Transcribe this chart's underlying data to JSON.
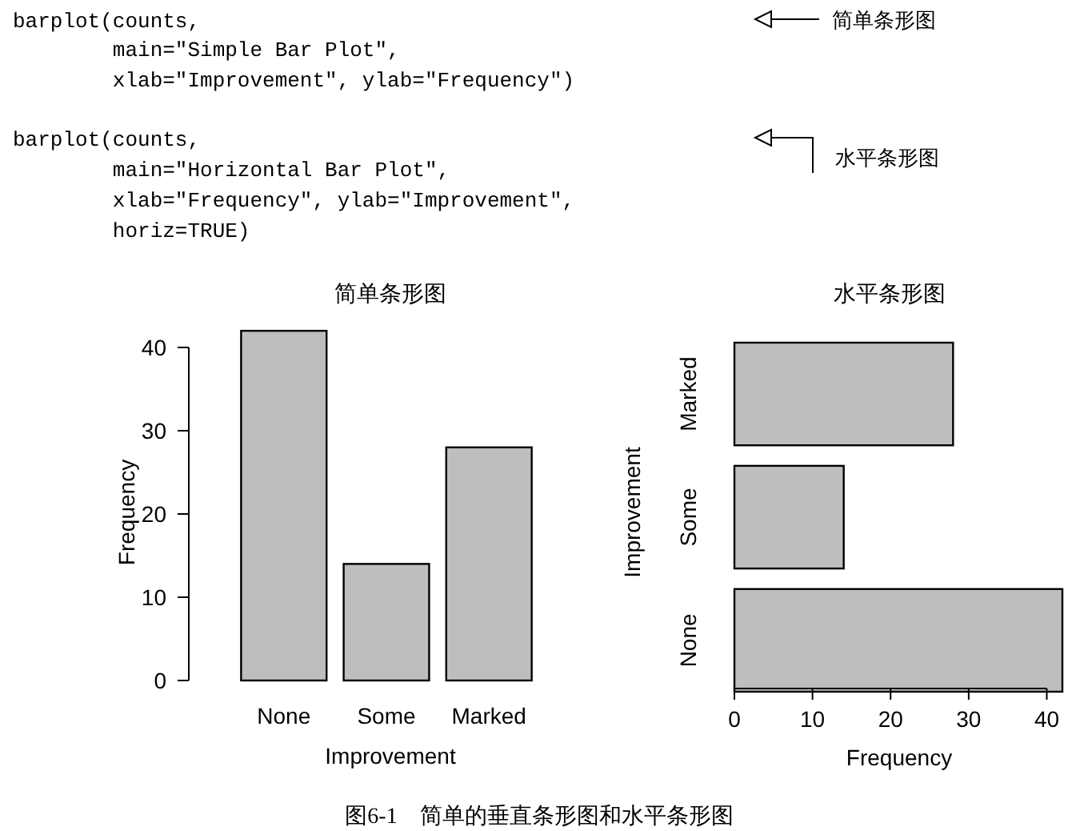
{
  "chart_data": [
    {
      "type": "bar",
      "title": "简单条形图",
      "xlabel": "Improvement",
      "ylabel": "Frequency",
      "categories": [
        "None",
        "Some",
        "Marked"
      ],
      "values": [
        42,
        14,
        28
      ],
      "color": "#bebebe",
      "ylim": [
        0,
        42
      ],
      "yticks": [
        0,
        10,
        20,
        30,
        40
      ],
      "annotations": [
        "barplot(counts,",
        "        main=\"Simple Bar Plot\",",
        "        xlab=\"Improvement\", ylab=\"Frequency\")",
        "barplot(counts,",
        "        main=\"Horizontal Bar Plot\",",
        "        xlab=\"Frequency\", ylab=\"Improvement\",",
        "        horiz=TRUE)",
        "简单条形图",
        "水平条形图",
        "图6-1　简单的垂直条形图和水平条形图"
      ]
    },
    {
      "type": "bar",
      "orientation": "horizontal",
      "title": "水平条形图",
      "xlabel": "Frequency",
      "ylabel": "Improvement",
      "categories": [
        "Marked",
        "Some",
        "None"
      ],
      "values": [
        28,
        14,
        42
      ],
      "color": "#bebebe",
      "xlim": [
        0,
        42
      ],
      "xticks": [
        0,
        10,
        20,
        30,
        40
      ]
    }
  ]
}
